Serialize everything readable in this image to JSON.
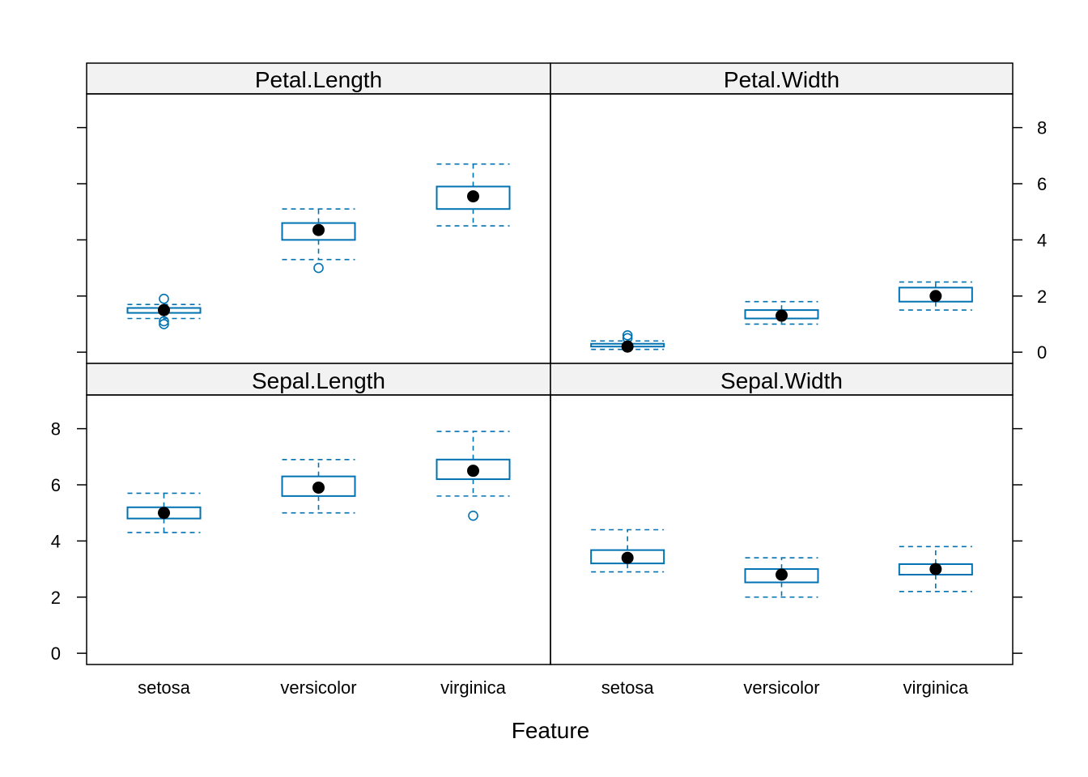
{
  "chart_data": {
    "type": "box",
    "xlabel": "Feature",
    "ylabel": "",
    "ylim": [
      -0.4,
      9.2
    ],
    "y_ticks": [
      0,
      2,
      4,
      6,
      8
    ],
    "categories": [
      "setosa",
      "versicolor",
      "virginica"
    ],
    "box_color": "#0072B2",
    "median_dot_color": "#000000",
    "strip_color": "#f2f2f2",
    "grid": false,
    "panels": [
      {
        "name": "Petal.Length",
        "boxes": [
          {
            "category": "setosa",
            "lower_whisker": 1.2,
            "q1": 1.4,
            "median": 1.5,
            "q3": 1.575,
            "upper_whisker": 1.7,
            "outliers": [
              1.0,
              1.1,
              1.9
            ]
          },
          {
            "category": "versicolor",
            "lower_whisker": 3.3,
            "q1": 4.0,
            "median": 4.35,
            "q3": 4.6,
            "upper_whisker": 5.1,
            "outliers": [
              3.0
            ]
          },
          {
            "category": "virginica",
            "lower_whisker": 4.5,
            "q1": 5.1,
            "median": 5.55,
            "q3": 5.9,
            "upper_whisker": 6.7,
            "outliers": []
          }
        ]
      },
      {
        "name": "Petal.Width",
        "boxes": [
          {
            "category": "setosa",
            "lower_whisker": 0.1,
            "q1": 0.2,
            "median": 0.2,
            "q3": 0.3,
            "upper_whisker": 0.4,
            "outliers": [
              0.5,
              0.6
            ]
          },
          {
            "category": "versicolor",
            "lower_whisker": 1.0,
            "q1": 1.2,
            "median": 1.3,
            "q3": 1.5,
            "upper_whisker": 1.8,
            "outliers": []
          },
          {
            "category": "virginica",
            "lower_whisker": 1.5,
            "q1": 1.8,
            "median": 2.0,
            "q3": 2.3,
            "upper_whisker": 2.5,
            "outliers": []
          }
        ]
      },
      {
        "name": "Sepal.Length",
        "boxes": [
          {
            "category": "setosa",
            "lower_whisker": 4.3,
            "q1": 4.8,
            "median": 5.0,
            "q3": 5.2,
            "upper_whisker": 5.7,
            "outliers": []
          },
          {
            "category": "versicolor",
            "lower_whisker": 5.0,
            "q1": 5.6,
            "median": 5.9,
            "q3": 6.3,
            "upper_whisker": 6.9,
            "outliers": []
          },
          {
            "category": "virginica",
            "lower_whisker": 5.6,
            "q1": 6.2,
            "median": 6.5,
            "q3": 6.9,
            "upper_whisker": 7.9,
            "outliers": [
              4.9
            ]
          }
        ]
      },
      {
        "name": "Sepal.Width",
        "boxes": [
          {
            "category": "setosa",
            "lower_whisker": 2.9,
            "q1": 3.2,
            "median": 3.4,
            "q3": 3.675,
            "upper_whisker": 4.4,
            "outliers": []
          },
          {
            "category": "versicolor",
            "lower_whisker": 2.0,
            "q1": 2.525,
            "median": 2.8,
            "q3": 3.0,
            "upper_whisker": 3.4,
            "outliers": []
          },
          {
            "category": "virginica",
            "lower_whisker": 2.2,
            "q1": 2.8,
            "median": 3.0,
            "q3": 3.175,
            "upper_whisker": 3.8,
            "outliers": []
          }
        ]
      }
    ]
  }
}
